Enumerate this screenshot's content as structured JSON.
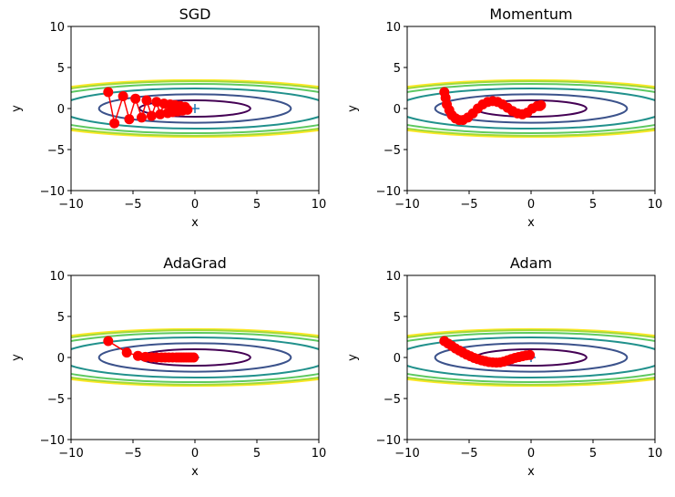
{
  "figure": {
    "colors": {
      "background": "#ffffff",
      "path": "#ff0000",
      "minimum_marker": "#1f77b4",
      "contour_colors": [
        "#440154",
        "#3b528b",
        "#21918c",
        "#5ec962",
        "#a0da39",
        "#fde725"
      ]
    }
  },
  "chart_data": [
    {
      "type": "line",
      "title": "SGD",
      "xlabel": "x",
      "ylabel": "y",
      "xlim": [
        -10,
        10
      ],
      "ylim": [
        -10,
        10
      ],
      "xticks": [
        -10,
        -5,
        0,
        5,
        10
      ],
      "yticks": [
        -10,
        -5,
        0,
        5,
        10
      ],
      "xtick_labels": [
        "−10",
        "−5",
        "0",
        "5",
        "10"
      ],
      "ytick_labels": [
        "−10",
        "−5",
        "0",
        "5",
        "10"
      ],
      "contours": {
        "function": "x^2/20 + y^2",
        "levels": [
          1,
          3,
          6,
          9,
          11,
          12
        ]
      },
      "minimum": {
        "x": 0,
        "y": 0
      },
      "series": [
        {
          "marker": "o",
          "x": [
            -7.0,
            -6.5,
            -5.8,
            -5.3,
            -4.8,
            -4.3,
            -3.9,
            -3.5,
            -3.1,
            -2.8,
            -2.5,
            -2.2,
            -2.0,
            -1.8,
            -1.6,
            -1.4,
            -1.2,
            -1.0,
            -0.8,
            -0.6
          ],
          "y": [
            2.0,
            -1.8,
            1.5,
            -1.3,
            1.2,
            -1.1,
            1.0,
            -0.9,
            0.8,
            -0.7,
            0.6,
            -0.55,
            0.5,
            -0.45,
            0.4,
            -0.35,
            0.3,
            -0.25,
            0.2,
            -0.15
          ]
        }
      ]
    },
    {
      "type": "line",
      "title": "Momentum",
      "xlabel": "x",
      "ylabel": "y",
      "xlim": [
        -10,
        10
      ],
      "ylim": [
        -10,
        10
      ],
      "xticks": [
        -10,
        -5,
        0,
        5,
        10
      ],
      "yticks": [
        -10,
        -5,
        0,
        5,
        10
      ],
      "xtick_labels": [
        "−10",
        "−5",
        "0",
        "5",
        "10"
      ],
      "ytick_labels": [
        "−10",
        "−5",
        "0",
        "5",
        "10"
      ],
      "contours": {
        "function": "x^2/20 + y^2",
        "levels": [
          1,
          3,
          6,
          9,
          11,
          12
        ]
      },
      "minimum": {
        "x": 0,
        "y": 0
      },
      "series": [
        {
          "marker": "o",
          "x": [
            -7.0,
            -6.9,
            -6.8,
            -6.6,
            -6.4,
            -6.1,
            -5.8,
            -5.5,
            -5.1,
            -4.7,
            -4.3,
            -3.9,
            -3.5,
            -3.1,
            -2.7,
            -2.3,
            -1.9,
            -1.5,
            -1.1,
            -0.7,
            -0.3,
            0.1,
            0.5,
            0.8,
            0.7
          ],
          "y": [
            2.0,
            1.3,
            0.5,
            -0.2,
            -0.8,
            -1.2,
            -1.4,
            -1.4,
            -1.1,
            -0.6,
            0.0,
            0.5,
            0.8,
            0.9,
            0.8,
            0.5,
            0.1,
            -0.3,
            -0.6,
            -0.7,
            -0.5,
            0.0,
            0.3,
            0.4,
            0.3
          ]
        }
      ]
    },
    {
      "type": "line",
      "title": "AdaGrad",
      "xlabel": "x",
      "ylabel": "y",
      "xlim": [
        -10,
        10
      ],
      "ylim": [
        -10,
        10
      ],
      "xticks": [
        -10,
        -5,
        0,
        5,
        10
      ],
      "yticks": [
        -10,
        -5,
        0,
        5,
        10
      ],
      "xtick_labels": [
        "−10",
        "−5",
        "0",
        "5",
        "10"
      ],
      "ytick_labels": [
        "−10",
        "−5",
        "0",
        "5",
        "10"
      ],
      "contours": {
        "function": "x^2/20 + y^2",
        "levels": [
          1,
          3,
          6,
          9,
          11,
          12
        ]
      },
      "minimum": {
        "x": 0,
        "y": 0
      },
      "series": [
        {
          "marker": "o",
          "x": [
            -7.0,
            -5.5,
            -4.6,
            -4.0,
            -3.5,
            -3.1,
            -2.7,
            -2.4,
            -2.1,
            -1.8,
            -1.5,
            -1.3,
            -1.1,
            -0.9,
            -0.7,
            -0.5,
            -0.3,
            -0.1
          ],
          "y": [
            2.0,
            0.6,
            0.2,
            0.07,
            0.02,
            0.0,
            0.0,
            0.0,
            0.0,
            0.0,
            0.0,
            0.0,
            0.0,
            0.0,
            0.0,
            0.0,
            0.0,
            0.0
          ]
        }
      ]
    },
    {
      "type": "line",
      "title": "Adam",
      "xlabel": "x",
      "ylabel": "y",
      "xlim": [
        -10,
        10
      ],
      "ylim": [
        -10,
        10
      ],
      "xticks": [
        -10,
        -5,
        0,
        5,
        10
      ],
      "yticks": [
        -10,
        -5,
        0,
        5,
        10
      ],
      "xtick_labels": [
        "−10",
        "−5",
        "0",
        "5",
        "10"
      ],
      "ytick_labels": [
        "−10",
        "−5",
        "0",
        "5",
        "10"
      ],
      "contours": {
        "function": "x^2/20 + y^2",
        "levels": [
          1,
          3,
          6,
          9,
          11,
          12
        ]
      },
      "minimum": {
        "x": 0,
        "y": 0
      },
      "series": [
        {
          "marker": "o",
          "x": [
            -7.0,
            -6.7,
            -6.4,
            -6.1,
            -5.8,
            -5.5,
            -5.2,
            -4.9,
            -4.6,
            -4.3,
            -4.0,
            -3.7,
            -3.4,
            -3.1,
            -2.8,
            -2.5,
            -2.2,
            -1.9,
            -1.6,
            -1.3,
            -1.0,
            -0.7,
            -0.4,
            -0.1
          ],
          "y": [
            2.0,
            1.7,
            1.4,
            1.1,
            0.85,
            0.6,
            0.35,
            0.15,
            -0.05,
            -0.2,
            -0.35,
            -0.45,
            -0.55,
            -0.6,
            -0.62,
            -0.6,
            -0.5,
            -0.35,
            -0.2,
            -0.05,
            0.05,
            0.15,
            0.25,
            0.3
          ]
        }
      ]
    }
  ]
}
